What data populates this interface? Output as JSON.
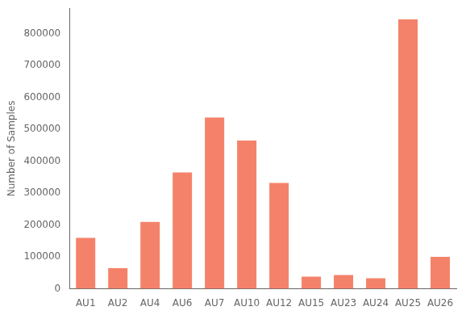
{
  "chart_data": {
    "type": "bar",
    "categories": [
      "AU1",
      "AU2",
      "AU4",
      "AU6",
      "AU7",
      "AU10",
      "AU12",
      "AU15",
      "AU23",
      "AU24",
      "AU25",
      "AU26"
    ],
    "values": [
      160000,
      65000,
      210000,
      365000,
      537000,
      465000,
      332000,
      38000,
      43000,
      33000,
      845000,
      100000
    ],
    "color": "#F4826A",
    "ylabel": "Number of Samples",
    "ylim": [
      0,
      880000
    ],
    "yticks": [
      0,
      100000,
      200000,
      300000,
      400000,
      500000,
      600000,
      700000,
      800000
    ],
    "grid": false
  }
}
